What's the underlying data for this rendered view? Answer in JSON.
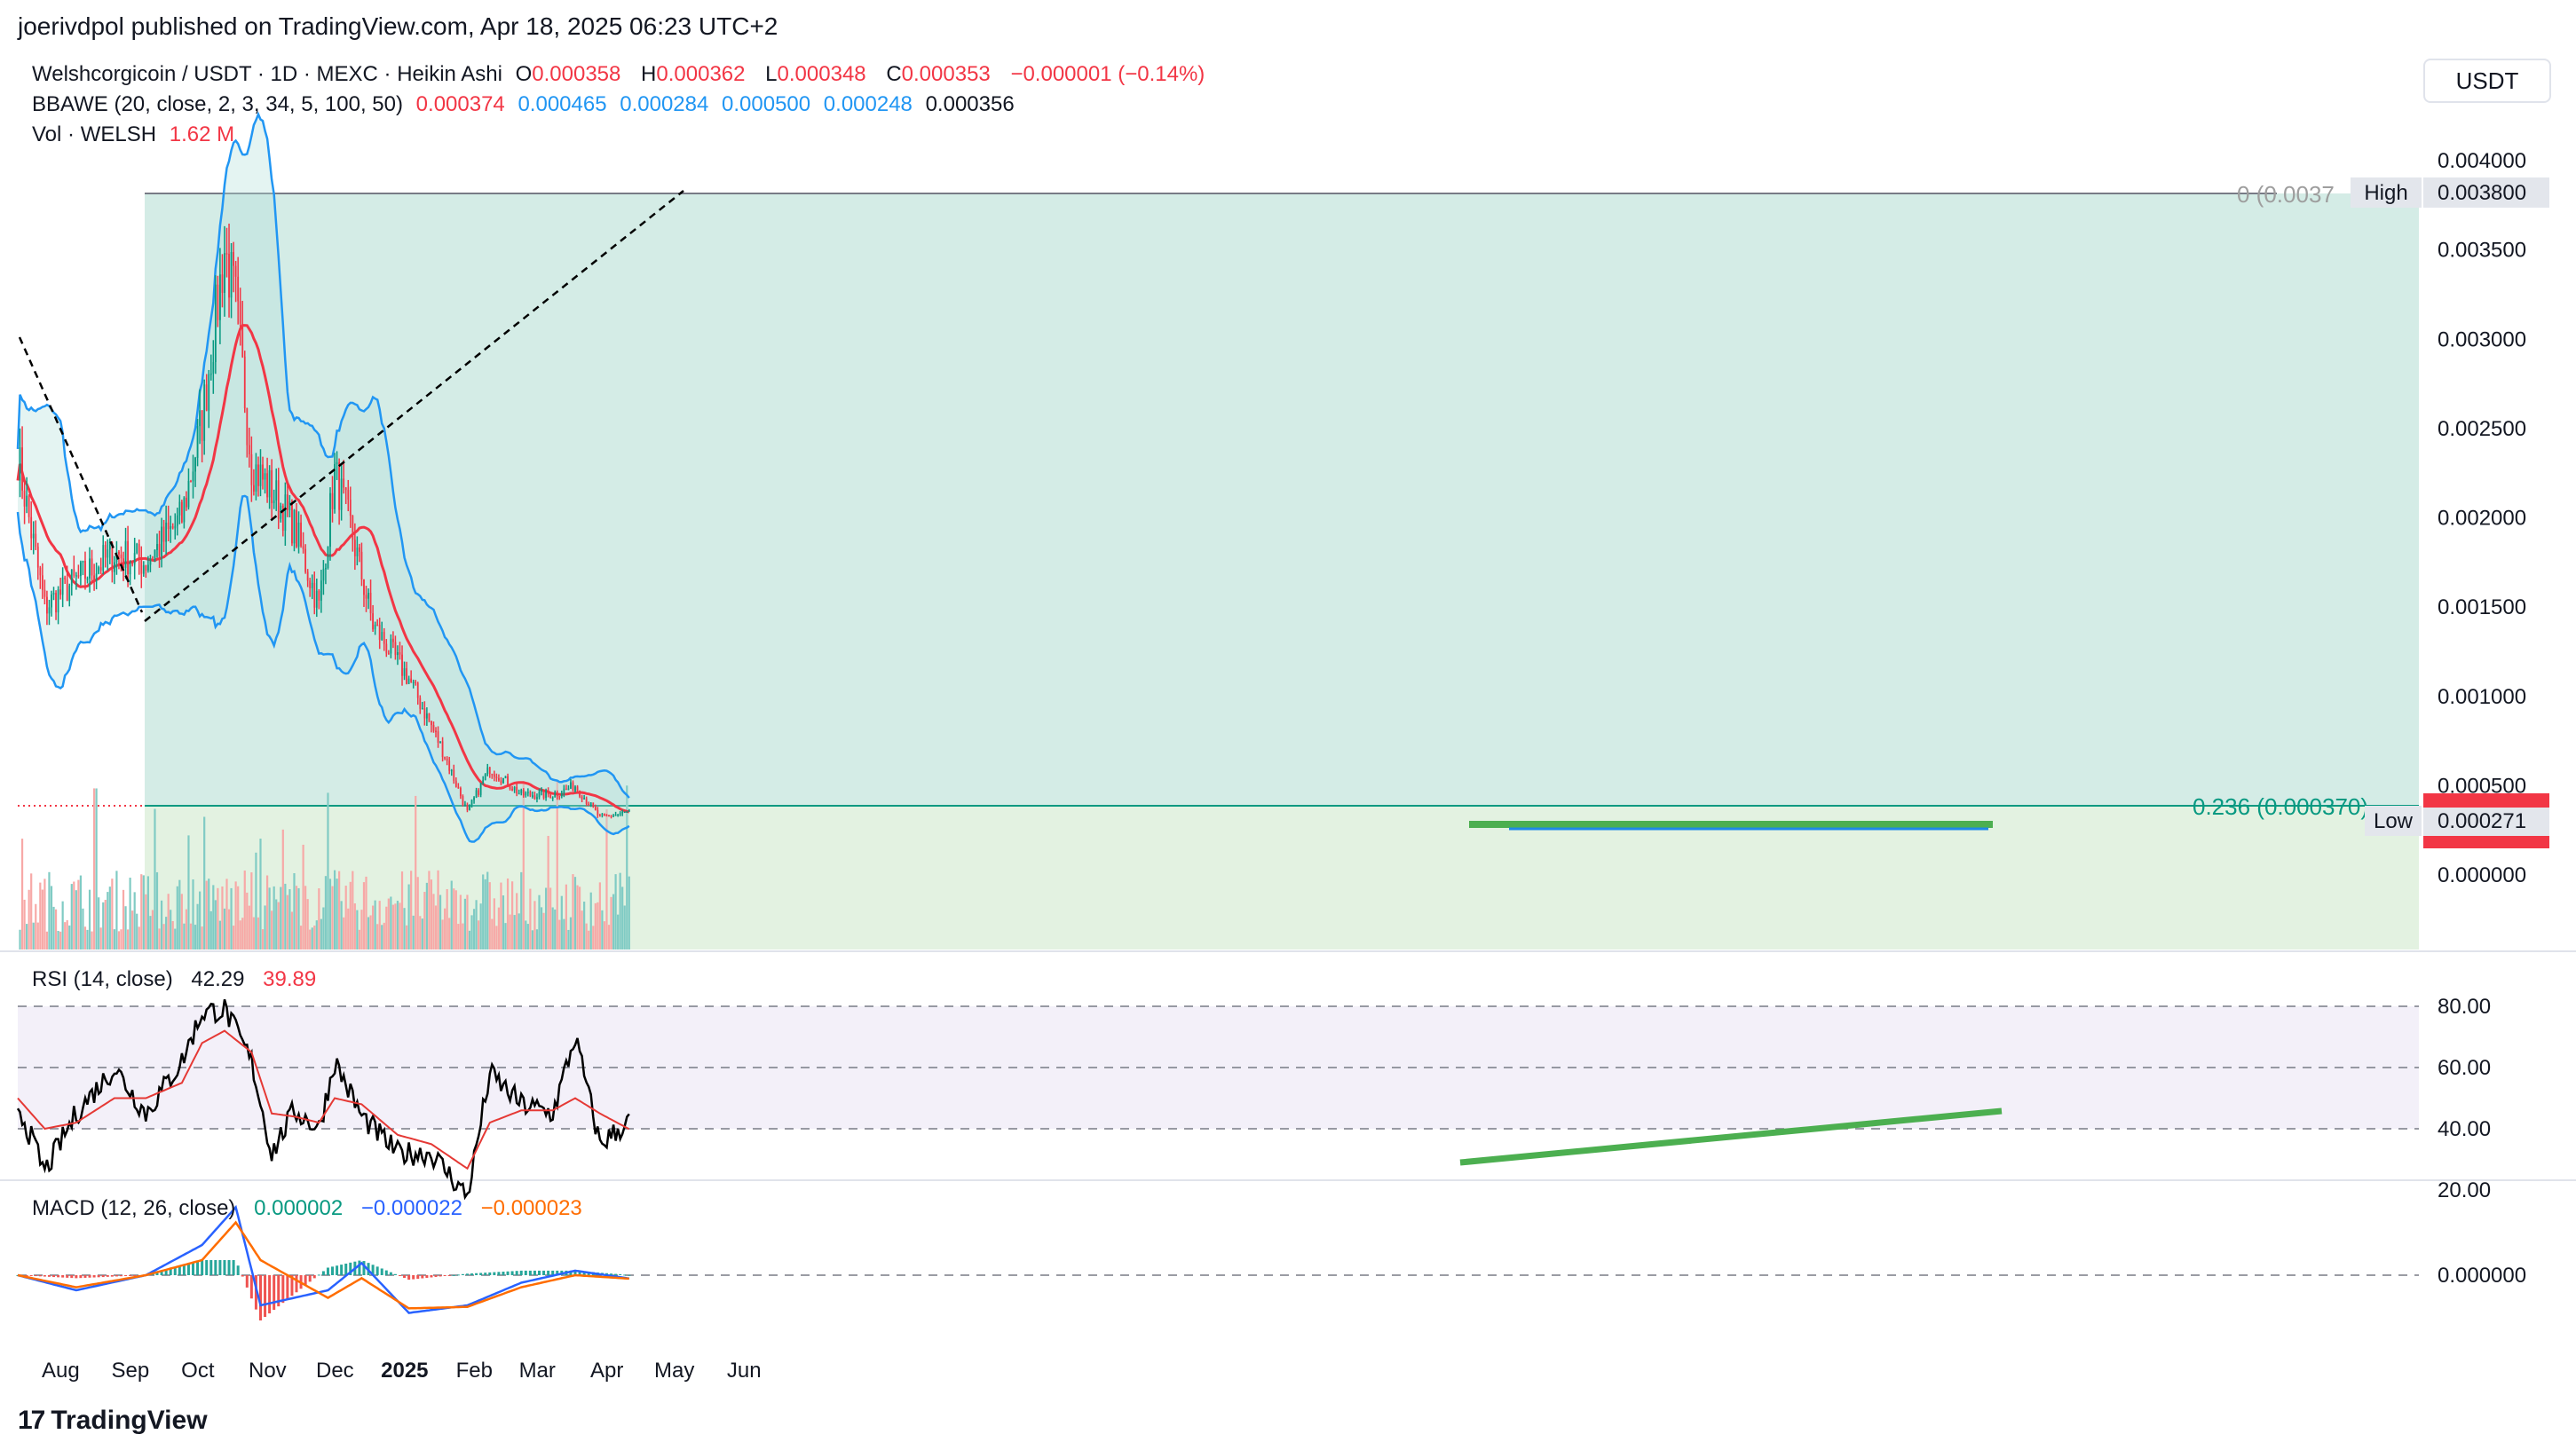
{
  "header": {
    "published": "joerivdpol published on TradingView.com, Apr 18, 2025 06:23 UTC+2",
    "symbol": "Welshcorgicoin / USDT · 1D · MEXC · Heikin Ashi",
    "o_label": "O",
    "o_value": "0.000358",
    "h_label": "H",
    "h_value": "0.000362",
    "l_label": "L",
    "l_value": "0.000348",
    "c_label": "C",
    "c_value": "0.000353",
    "change": "−0.000001 (−0.14%)",
    "bbawe_label": "BBAWE (20, close, 2, 3, 34, 5, 100, 50)",
    "bbawe_values": [
      "0.000374",
      "0.000465",
      "0.000284",
      "0.000500",
      "0.000248",
      "0.000356"
    ],
    "vol_label": "Vol · WELSH",
    "vol_value": "1.62 M",
    "currency_button": "USDT"
  },
  "colors": {
    "up": "#089981",
    "down": "#f23645",
    "band": "#2196f3",
    "basis": "#f23645",
    "fib_top": "#d4ece6",
    "fib_bottom": "#e3f2e1",
    "rsi_line": "#000000",
    "rsi_ma": "#e53935",
    "macd_line": "#2962ff",
    "signal_line": "#ff6d00",
    "divergence": "#4caf50"
  },
  "price_axis": {
    "ticks": [
      "0.004000",
      "0.003500",
      "0.003000",
      "0.002500",
      "0.002000",
      "0.001500",
      "0.001000",
      "0.000500",
      "0.000000"
    ],
    "high_label": "High",
    "high_value": "0.003800",
    "low_label": "Low",
    "low_value": "0.000271",
    "fib_top_label": "0 (0.0037",
    "fib_mid_label": "0.236 (0.000370)",
    "current_price": "0.000353"
  },
  "time_axis": {
    "labels": [
      "Aug",
      "Sep",
      "Oct",
      "Nov",
      "Dec",
      "2025",
      "Feb",
      "Mar",
      "Apr",
      "May",
      "Jun"
    ]
  },
  "rsi": {
    "title": "RSI (14, close)",
    "value": "42.29",
    "ma_value": "39.89",
    "ticks": [
      "80.00",
      "60.00",
      "40.00",
      "20.00"
    ]
  },
  "macd": {
    "title": "MACD (12, 26, close)",
    "hist": "0.000002",
    "macd": "−0.000022",
    "signal": "−0.000023",
    "ticks": [
      "0.000000"
    ]
  },
  "footer": {
    "brand": "TradingView"
  },
  "chart_data": [
    {
      "type": "line",
      "title": "Welshcorgicoin / USDT · 1D · MEXC · Heikin Ashi",
      "x": [
        "2024-07-20",
        "2024-08-01",
        "2024-08-15",
        "2024-09-01",
        "2024-09-15",
        "2024-10-01",
        "2024-10-10",
        "2024-10-20",
        "2024-10-25",
        "2024-11-01",
        "2024-11-10",
        "2024-11-20",
        "2024-12-01",
        "2024-12-08",
        "2024-12-15",
        "2024-12-25",
        "2025-01-10",
        "2025-01-25",
        "2025-02-05",
        "2025-02-15",
        "2025-03-01",
        "2025-03-15",
        "2025-03-25",
        "2025-04-05",
        "2025-04-18"
      ],
      "series": [
        {
          "name": "Close",
          "values": [
            0.00235,
            0.0015,
            0.00165,
            0.0018,
            0.00175,
            0.002,
            0.00255,
            0.0035,
            0.0032,
            0.0023,
            0.00215,
            0.00195,
            0.0015,
            0.00225,
            0.00195,
            0.0014,
            0.0011,
            0.0007,
            0.00035,
            0.0006,
            0.00045,
            0.00045,
            0.0005,
            0.00032,
            0.000353
          ]
        }
      ],
      "ylim": [
        0,
        0.004
      ],
      "annotations": [
        "High 0.003800",
        "Low 0.000271",
        "0.236 (0.000370)"
      ]
    },
    {
      "type": "line",
      "title": "RSI (14, close)",
      "x": [
        "2024-07-20",
        "2024-08-01",
        "2024-08-15",
        "2024-09-01",
        "2024-09-15",
        "2024-10-01",
        "2024-10-10",
        "2024-10-20",
        "2024-11-01",
        "2024-11-10",
        "2024-11-20",
        "2024-12-01",
        "2024-12-08",
        "2024-12-20",
        "2025-01-05",
        "2025-01-20",
        "2025-02-05",
        "2025-02-15",
        "2025-03-01",
        "2025-03-15",
        "2025-03-25",
        "2025-04-05",
        "2025-04-18"
      ],
      "series": [
        {
          "name": "RSI",
          "values": [
            48,
            26,
            45,
            60,
            45,
            62,
            78,
            79,
            62,
            32,
            46,
            40,
            62,
            44,
            32,
            32,
            18,
            58,
            48,
            45,
            70,
            35,
            42.29
          ]
        },
        {
          "name": "RSI MA",
          "values": [
            50,
            40,
            42,
            50,
            50,
            55,
            68,
            72,
            65,
            45,
            44,
            42,
            50,
            48,
            38,
            35,
            27,
            42,
            46,
            46,
            50,
            45,
            39.89
          ]
        }
      ],
      "ylim": [
        10,
        90
      ]
    },
    {
      "type": "line",
      "title": "MACD (12, 26, close)",
      "x": [
        "2024-07-20",
        "2024-08-15",
        "2024-09-15",
        "2024-10-10",
        "2024-10-25",
        "2024-11-05",
        "2024-12-05",
        "2024-12-20",
        "2025-01-10",
        "2025-02-05",
        "2025-03-01",
        "2025-03-25",
        "2025-04-18"
      ],
      "series": [
        {
          "name": "MACD",
          "values": [
            0.0,
            -0.0001,
            0.0,
            0.0002,
            0.00045,
            -0.0002,
            -0.0001,
            8e-05,
            -0.00025,
            -0.0002,
            -5e-05,
            3e-05,
            -2.2e-05
          ]
        },
        {
          "name": "Signal",
          "values": [
            0.0,
            -8e-05,
            0.0,
            0.0001,
            0.00035,
            0.0001,
            -0.00015,
            -2e-05,
            -0.00022,
            -0.00021,
            -8e-05,
            0.0,
            -2.3e-05
          ]
        }
      ]
    }
  ]
}
